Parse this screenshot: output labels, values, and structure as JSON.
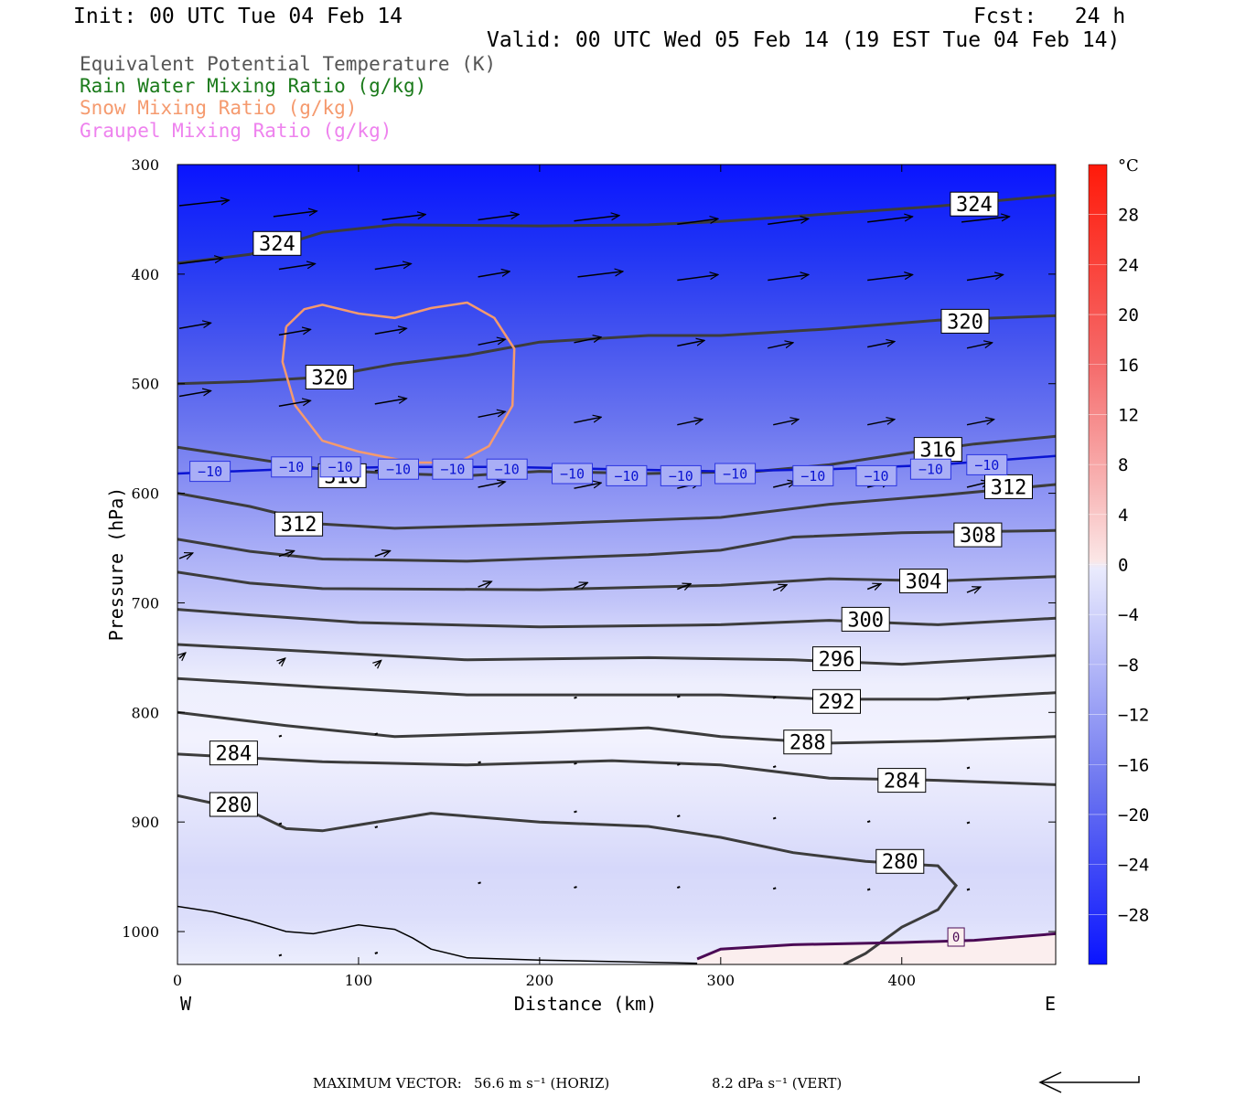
{
  "header": {
    "init": "Init: 00 UTC Tue 04 Feb 14",
    "fcst": "Fcst:   24 h",
    "valid": "Valid: 00 UTC Wed 05 Feb 14 (19 EST Tue 04 Feb 14)"
  },
  "legend": [
    {
      "text": "Equivalent Potential Temperature (K)",
      "color": "#555555"
    },
    {
      "text": "Rain Water Mixing Ratio (g/kg)",
      "color": "#1a7a1a"
    },
    {
      "text": "Snow Mixing Ratio (g/kg)",
      "color": "#f59a6e"
    },
    {
      "text": "Graupel Mixing Ratio (g/kg)",
      "color": "#ee82ee"
    }
  ],
  "footer": {
    "label": "MAXIMUM VECTOR:",
    "horiz": "56.6 m s⁻¹ (HORIZ)",
    "vert": "8.2 dPa s⁻¹ (VERT)"
  },
  "chart_data": {
    "type": "contour-cross-section",
    "xlabel": "Distance (km)",
    "ylabel": "Pressure (hPa)",
    "xlim": [
      0,
      485
    ],
    "ylim": [
      300,
      1030
    ],
    "x_ticks": [
      0,
      100,
      200,
      300,
      400
    ],
    "y_ticks": [
      300,
      400,
      500,
      600,
      700,
      800,
      900,
      1000
    ],
    "x_end_labels": {
      "left": "W",
      "right": "E"
    },
    "colorbar": {
      "unit": "°C",
      "range": [
        -32,
        32
      ],
      "tick_labels": [
        "28",
        "24",
        "20",
        "16",
        "12",
        "8",
        "4",
        "0",
        "−4",
        "−8",
        "−12",
        "−16",
        "−20",
        "−24",
        "−28"
      ],
      "tick_values": [
        28,
        24,
        20,
        16,
        12,
        8,
        4,
        0,
        -4,
        -8,
        -12,
        -16,
        -20,
        -24,
        -28
      ]
    },
    "theta_e_contours": [
      {
        "level": "324",
        "pts": [
          [
            0,
            390
          ],
          [
            40,
            382
          ],
          [
            80,
            362
          ],
          [
            120,
            355
          ],
          [
            200,
            356
          ],
          [
            260,
            355
          ],
          [
            300,
            352
          ],
          [
            360,
            345
          ],
          [
            420,
            338
          ],
          [
            485,
            328
          ]
        ],
        "labels": [
          [
            55,
            372
          ],
          [
            440,
            336
          ]
        ]
      },
      {
        "level": "320",
        "pts": [
          [
            0,
            500
          ],
          [
            40,
            498
          ],
          [
            80,
            494
          ],
          [
            120,
            482
          ],
          [
            160,
            474
          ],
          [
            200,
            462
          ],
          [
            260,
            456
          ],
          [
            300,
            456
          ],
          [
            360,
            450
          ],
          [
            420,
            442
          ],
          [
            485,
            438
          ]
        ],
        "labels": [
          [
            84,
            494
          ],
          [
            435,
            443
          ]
        ]
      },
      {
        "level": "316",
        "pts": [
          [
            0,
            558
          ],
          [
            40,
            568
          ],
          [
            80,
            578
          ],
          [
            120,
            582
          ],
          [
            160,
            584
          ],
          [
            200,
            580
          ],
          [
            260,
            582
          ],
          [
            320,
            580
          ],
          [
            360,
            574
          ],
          [
            400,
            564
          ],
          [
            440,
            555
          ],
          [
            485,
            548
          ]
        ],
        "labels": [
          [
            91,
            584
          ],
          [
            420,
            560
          ]
        ]
      },
      {
        "level": "312",
        "pts": [
          [
            0,
            600
          ],
          [
            40,
            612
          ],
          [
            80,
            628
          ],
          [
            120,
            632
          ],
          [
            200,
            628
          ],
          [
            300,
            622
          ],
          [
            360,
            610
          ],
          [
            420,
            602
          ],
          [
            485,
            592
          ]
        ],
        "labels": [
          [
            67,
            628
          ],
          [
            459,
            594
          ]
        ]
      },
      {
        "level": "308",
        "pts": [
          [
            0,
            642
          ],
          [
            40,
            653
          ],
          [
            80,
            660
          ],
          [
            160,
            662
          ],
          [
            260,
            656
          ],
          [
            300,
            652
          ],
          [
            340,
            640
          ],
          [
            400,
            636
          ],
          [
            485,
            634
          ]
        ],
        "labels": [
          [
            442,
            638
          ]
        ]
      },
      {
        "level": "304",
        "pts": [
          [
            0,
            672
          ],
          [
            40,
            682
          ],
          [
            80,
            687
          ],
          [
            200,
            688
          ],
          [
            300,
            684
          ],
          [
            360,
            678
          ],
          [
            420,
            680
          ],
          [
            485,
            676
          ]
        ],
        "labels": [
          [
            412,
            680
          ]
        ]
      },
      {
        "level": "300",
        "pts": [
          [
            0,
            706
          ],
          [
            40,
            711
          ],
          [
            100,
            718
          ],
          [
            200,
            722
          ],
          [
            300,
            720
          ],
          [
            360,
            716
          ],
          [
            420,
            720
          ],
          [
            485,
            714
          ]
        ],
        "labels": [
          [
            380,
            715
          ]
        ]
      },
      {
        "level": "296",
        "pts": [
          [
            0,
            738
          ],
          [
            80,
            745
          ],
          [
            160,
            752
          ],
          [
            260,
            750
          ],
          [
            340,
            752
          ],
          [
            400,
            756
          ],
          [
            485,
            748
          ]
        ],
        "labels": [
          [
            364,
            751
          ]
        ]
      },
      {
        "level": "292",
        "pts": [
          [
            0,
            769
          ],
          [
            80,
            777
          ],
          [
            160,
            784
          ],
          [
            240,
            784
          ],
          [
            300,
            784
          ],
          [
            360,
            788
          ],
          [
            420,
            788
          ],
          [
            485,
            782
          ]
        ],
        "labels": [
          [
            364,
            790
          ]
        ]
      },
      {
        "level": "288",
        "pts": [
          [
            0,
            800
          ],
          [
            60,
            812
          ],
          [
            120,
            822
          ],
          [
            200,
            818
          ],
          [
            260,
            814
          ],
          [
            300,
            822
          ],
          [
            360,
            828
          ],
          [
            420,
            826
          ],
          [
            485,
            822
          ]
        ],
        "labels": [
          [
            348,
            827
          ]
        ]
      },
      {
        "level": "284",
        "pts": [
          [
            0,
            838
          ],
          [
            80,
            845
          ],
          [
            160,
            848
          ],
          [
            240,
            844
          ],
          [
            300,
            848
          ],
          [
            360,
            860
          ],
          [
            420,
            862
          ],
          [
            485,
            866
          ]
        ],
        "labels": [
          [
            31,
            837
          ],
          [
            400,
            862
          ]
        ]
      },
      {
        "level": "280",
        "pts": [
          [
            0,
            876
          ],
          [
            40,
            890
          ],
          [
            60,
            906
          ],
          [
            80,
            908
          ],
          [
            140,
            892
          ],
          [
            200,
            900
          ],
          [
            260,
            904
          ],
          [
            300,
            914
          ],
          [
            340,
            928
          ],
          [
            380,
            936
          ],
          [
            420,
            940
          ],
          [
            430,
            958
          ],
          [
            420,
            980
          ],
          [
            400,
            996
          ],
          [
            380,
            1020
          ],
          [
            368,
            1030
          ]
        ],
        "labels": [
          [
            31,
            884
          ],
          [
            399,
            936
          ]
        ]
      }
    ],
    "isotherm_minus10": {
      "level": "−10",
      "color": "#0a14d2",
      "pts": [
        [
          0,
          582
        ],
        [
          60,
          578
        ],
        [
          120,
          576
        ],
        [
          180,
          576
        ],
        [
          240,
          578
        ],
        [
          300,
          580
        ],
        [
          360,
          578
        ],
        [
          420,
          574
        ],
        [
          485,
          566
        ]
      ],
      "labels": [
        [
          18,
          580
        ],
        [
          63,
          576
        ],
        [
          90,
          576
        ],
        [
          122,
          578
        ],
        [
          152,
          578
        ],
        [
          182,
          578
        ],
        [
          218,
          582
        ],
        [
          248,
          584
        ],
        [
          278,
          584
        ],
        [
          308,
          582
        ],
        [
          351,
          584
        ],
        [
          386,
          584
        ],
        [
          416,
          578
        ],
        [
          447,
          574
        ]
      ]
    },
    "isotherm_zero": {
      "level": "0",
      "color": "#4b0a55",
      "pts": [
        [
          287,
          1025
        ],
        [
          300,
          1016
        ],
        [
          340,
          1012
        ],
        [
          400,
          1010
        ],
        [
          440,
          1008
        ],
        [
          485,
          1002
        ]
      ],
      "labels": [
        [
          430,
          1005
        ]
      ]
    },
    "terrain_line": [
      [
        0,
        977
      ],
      [
        20,
        982
      ],
      [
        40,
        990
      ],
      [
        60,
        1000
      ],
      [
        75,
        1002
      ],
      [
        100,
        994
      ],
      [
        120,
        998
      ],
      [
        130,
        1006
      ],
      [
        140,
        1016
      ],
      [
        160,
        1024
      ],
      [
        200,
        1026
      ],
      [
        260,
        1028
      ],
      [
        287,
        1029
      ]
    ],
    "snow_contour": [
      [
        60,
        448
      ],
      [
        70,
        432
      ],
      [
        80,
        428
      ],
      [
        100,
        436
      ],
      [
        120,
        440
      ],
      [
        140,
        431
      ],
      [
        160,
        426
      ],
      [
        175,
        440
      ],
      [
        186,
        468
      ],
      [
        185,
        520
      ],
      [
        172,
        557
      ],
      [
        155,
        572
      ],
      [
        130,
        572
      ],
      [
        100,
        562
      ],
      [
        80,
        552
      ],
      [
        65,
        520
      ],
      [
        58,
        480
      ],
      [
        60,
        448
      ]
    ],
    "warm_region": [
      [
        287,
        1030
      ],
      [
        287,
        1025
      ],
      [
        300,
        1016
      ],
      [
        340,
        1012
      ],
      [
        400,
        1010
      ],
      [
        440,
        1008
      ],
      [
        485,
        1002
      ],
      [
        485,
        1030
      ]
    ],
    "wind_vectors": [
      {
        "x": 0,
        "p": 335,
        "dx": 55
      },
      {
        "x": 52,
        "p": 345,
        "dx": 48
      },
      {
        "x": 112,
        "p": 348,
        "dx": 48
      },
      {
        "x": 165,
        "p": 348,
        "dx": 45
      },
      {
        "x": 218,
        "p": 349,
        "dx": 50
      },
      {
        "x": 275,
        "p": 352,
        "dx": 45
      },
      {
        "x": 325,
        "p": 352,
        "dx": 45
      },
      {
        "x": 380,
        "p": 350,
        "dx": 50
      },
      {
        "x": 432,
        "p": 350,
        "dx": 53
      },
      {
        "x": 0,
        "p": 388,
        "dx": 48
      },
      {
        "x": 55,
        "p": 393,
        "dx": 40
      },
      {
        "x": 108,
        "p": 393,
        "dx": 40
      },
      {
        "x": 165,
        "p": 400,
        "dx": 35
      },
      {
        "x": 220,
        "p": 400,
        "dx": 50
      },
      {
        "x": 275,
        "p": 403,
        "dx": 45
      },
      {
        "x": 325,
        "p": 403,
        "dx": 45
      },
      {
        "x": 380,
        "p": 403,
        "dx": 50
      },
      {
        "x": 435,
        "p": 403,
        "dx": 40
      },
      {
        "x": 0,
        "p": 447,
        "dx": 35
      },
      {
        "x": 55,
        "p": 453,
        "dx": 35
      },
      {
        "x": 108,
        "p": 452,
        "dx": 35
      },
      {
        "x": 165,
        "p": 462,
        "dx": 30
      },
      {
        "x": 218,
        "p": 460,
        "dx": 30
      },
      {
        "x": 275,
        "p": 463,
        "dx": 30
      },
      {
        "x": 325,
        "p": 465,
        "dx": 28
      },
      {
        "x": 380,
        "p": 464,
        "dx": 30
      },
      {
        "x": 435,
        "p": 465,
        "dx": 28
      },
      {
        "x": 0,
        "p": 509,
        "dx": 35
      },
      {
        "x": 55,
        "p": 518,
        "dx": 35
      },
      {
        "x": 108,
        "p": 516,
        "dx": 35
      },
      {
        "x": 165,
        "p": 528,
        "dx": 30
      },
      {
        "x": 218,
        "p": 533,
        "dx": 30
      },
      {
        "x": 275,
        "p": 535,
        "dx": 28
      },
      {
        "x": 328,
        "p": 535,
        "dx": 28
      },
      {
        "x": 380,
        "p": 535,
        "dx": 30
      },
      {
        "x": 435,
        "p": 535,
        "dx": 30
      },
      {
        "x": 55,
        "p": 574,
        "dx": 30
      },
      {
        "x": 108,
        "p": 577,
        "dx": 30
      },
      {
        "x": 165,
        "p": 592,
        "dx": 30
      },
      {
        "x": 218,
        "p": 593,
        "dx": 30
      },
      {
        "x": 275,
        "p": 593,
        "dx": 25
      },
      {
        "x": 328,
        "p": 592,
        "dx": 25
      },
      {
        "x": 380,
        "p": 592,
        "dx": 25
      },
      {
        "x": 435,
        "p": 592,
        "dx": 25
      },
      {
        "x": 0,
        "p": 657,
        "dx": 15
      },
      {
        "x": 55,
        "p": 655,
        "dx": 17
      },
      {
        "x": 108,
        "p": 655,
        "dx": 17
      },
      {
        "x": 165,
        "p": 683,
        "dx": 15
      },
      {
        "x": 218,
        "p": 684,
        "dx": 15
      },
      {
        "x": 275,
        "p": 685,
        "dx": 15
      },
      {
        "x": 328,
        "p": 686,
        "dx": 15
      },
      {
        "x": 380,
        "p": 685,
        "dx": 15
      },
      {
        "x": 435,
        "p": 688,
        "dx": 15
      },
      {
        "x": 0,
        "p": 748,
        "dx": 7
      },
      {
        "x": 55,
        "p": 753,
        "dx": 7
      },
      {
        "x": 108,
        "p": 755,
        "dx": 7
      },
      {
        "x": 218,
        "p": 787,
        "dx": 5
      },
      {
        "x": 275,
        "p": 786,
        "dx": 5
      },
      {
        "x": 328,
        "p": 787,
        "dx": 5
      },
      {
        "x": 435,
        "p": 788,
        "dx": 5
      },
      {
        "x": 55,
        "p": 822,
        "dx": 3
      },
      {
        "x": 108,
        "p": 820,
        "dx": 3
      },
      {
        "x": 165,
        "p": 846,
        "dx": 3
      },
      {
        "x": 218,
        "p": 847,
        "dx": 3
      },
      {
        "x": 275,
        "p": 848,
        "dx": 3
      },
      {
        "x": 328,
        "p": 850,
        "dx": 3
      },
      {
        "x": 435,
        "p": 851,
        "dx": 3
      },
      {
        "x": 55,
        "p": 902,
        "dx": 3
      },
      {
        "x": 108,
        "p": 905,
        "dx": 3
      },
      {
        "x": 218,
        "p": 891,
        "dx": 3
      },
      {
        "x": 275,
        "p": 895,
        "dx": 3
      },
      {
        "x": 328,
        "p": 897,
        "dx": 3
      },
      {
        "x": 380,
        "p": 900,
        "dx": 3
      },
      {
        "x": 435,
        "p": 901,
        "dx": 3
      },
      {
        "x": 165,
        "p": 956,
        "dx": 3
      },
      {
        "x": 218,
        "p": 960,
        "dx": 3
      },
      {
        "x": 275,
        "p": 960,
        "dx": 3
      },
      {
        "x": 328,
        "p": 961,
        "dx": 3
      },
      {
        "x": 380,
        "p": 962,
        "dx": 3
      },
      {
        "x": 435,
        "p": 962,
        "dx": 3
      },
      {
        "x": 55,
        "p": 1022,
        "dx": 3
      },
      {
        "x": 108,
        "p": 1020,
        "dx": 3
      }
    ]
  }
}
